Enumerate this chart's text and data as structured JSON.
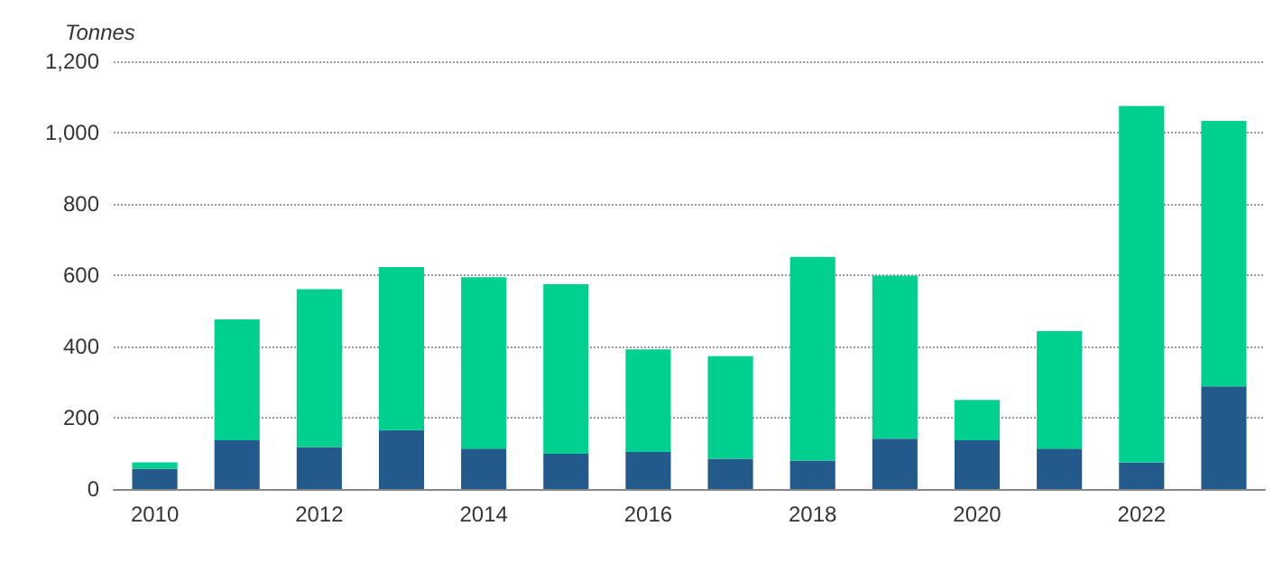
{
  "chart_data": {
    "type": "bar",
    "stacked": true,
    "ylabel": "Tonnes",
    "categories": [
      "2010",
      null,
      "2012",
      null,
      "2014",
      null,
      "2016",
      null,
      "2018",
      null,
      "2020",
      null,
      "2022",
      null
    ],
    "series": [
      {
        "color": "#225a8c",
        "values": [
          57,
          137,
          118,
          165,
          113,
          99,
          104,
          85,
          80,
          141,
          137,
          113,
          75,
          288
        ]
      },
      {
        "color": "#00d08f",
        "values": [
          18,
          339,
          443,
          458,
          481,
          476,
          288,
          288,
          571,
          458,
          113,
          330,
          1000,
          745
        ]
      }
    ],
    "ylim": [
      0,
      1200
    ],
    "yticks": [
      0,
      200,
      400,
      600,
      800,
      {
        "value": 1000,
        "label": "1,000"
      },
      {
        "value": 1200,
        "label": "1,200"
      }
    ],
    "grid": "y"
  }
}
